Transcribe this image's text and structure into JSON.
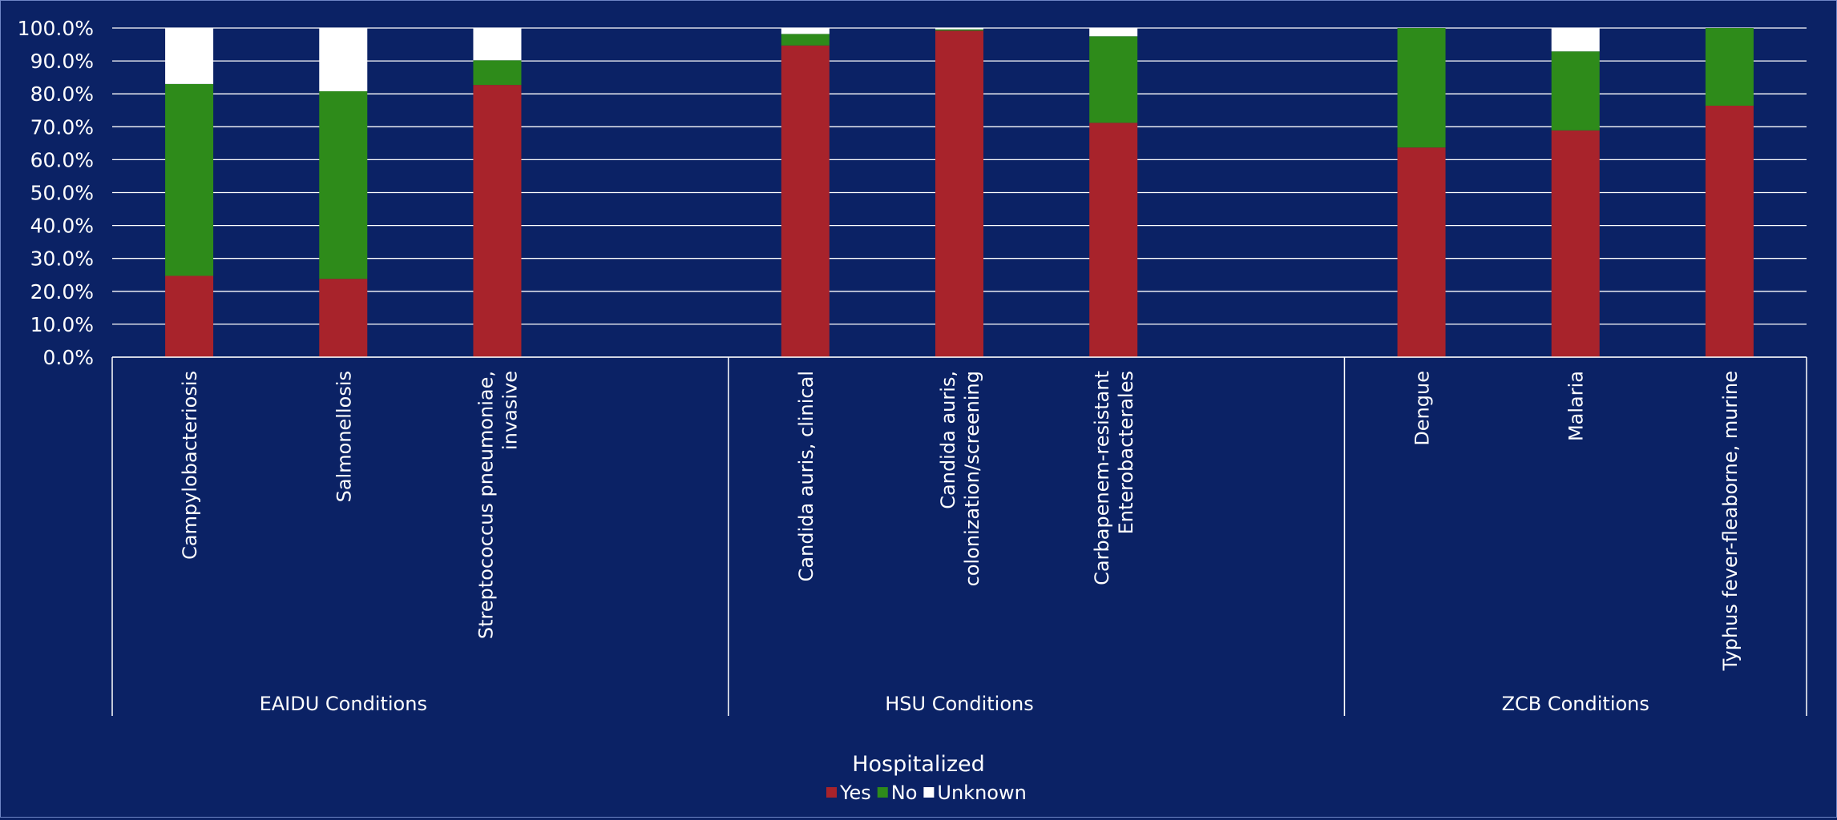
{
  "chart_data": {
    "type": "bar",
    "stacked": true,
    "normalized": true,
    "ylim": [
      0,
      100
    ],
    "y_ticks": [
      "0.0%",
      "10.0%",
      "20.0%",
      "30.0%",
      "40.0%",
      "50.0%",
      "60.0%",
      "70.0%",
      "80.0%",
      "90.0%",
      "100.0%"
    ],
    "grid": true,
    "legend": {
      "title": "Hospitalized",
      "position": "bottom"
    },
    "groups": [
      {
        "name": "EAIDU Conditions",
        "categories": [
          {
            "label": [
              "Campylobacteriosis"
            ],
            "slot": 0
          },
          {
            "label": [
              "Salmonellosis"
            ],
            "slot": 1
          },
          {
            "label": [
              "Streptococcus pneumoniae,",
              "invasive"
            ],
            "slot": 2
          }
        ]
      },
      {
        "name": "HSU Conditions",
        "categories": [
          {
            "label": [
              "Candida auris, clinical"
            ],
            "slot": 4
          },
          {
            "label": [
              "Candida auris,",
              "colonization/screening"
            ],
            "slot": 5
          },
          {
            "label": [
              "Carbapenem-resistant",
              "Enterobacterales"
            ],
            "slot": 6
          }
        ]
      },
      {
        "name": "ZCB Conditions",
        "categories": [
          {
            "label": [
              "Dengue"
            ],
            "slot": 8
          },
          {
            "label": [
              "Malaria"
            ],
            "slot": 9
          },
          {
            "label": [
              "Typhus fever-fleaborne, murine"
            ],
            "slot": 10
          }
        ]
      }
    ],
    "slot_count": 11,
    "group_slots": [
      [
        0,
        3
      ],
      [
        4,
        7
      ],
      [
        8,
        10
      ]
    ],
    "series": [
      {
        "name": "Yes",
        "color": "#a8232b",
        "values": [
          24.7,
          23.8,
          82.7,
          94.7,
          99.2,
          71.2,
          63.7,
          68.9,
          76.4
        ]
      },
      {
        "name": "No",
        "color": "#2e8b1a",
        "values": [
          58.3,
          57.0,
          7.5,
          3.5,
          0.4,
          26.3,
          36.3,
          24.0,
          23.6
        ]
      },
      {
        "name": "Unknown",
        "color": "#ffffff",
        "values": [
          17.0,
          19.2,
          9.8,
          1.8,
          0.4,
          2.5,
          0.0,
          7.1,
          0.0
        ]
      }
    ]
  }
}
